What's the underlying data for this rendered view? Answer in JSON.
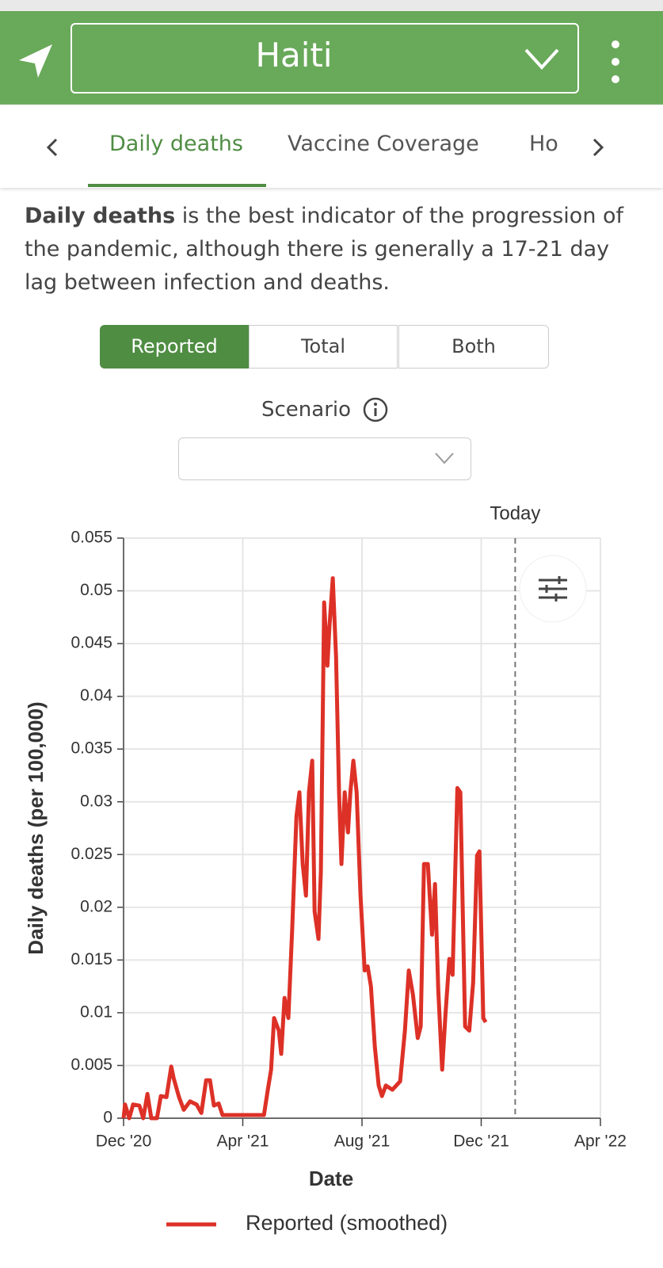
{
  "header": {
    "title": "Haiti"
  },
  "tabs": [
    "Daily deaths",
    "Vaccine Coverage",
    "Ho"
  ],
  "description": {
    "bold": "Daily deaths",
    "text": " is the best indicator of the progression of the pandemic, although there is generally a 17-21 day lag between infection and deaths."
  },
  "toggle": [
    "Reported",
    "Total",
    "Both"
  ],
  "scenario": {
    "label": "Scenario"
  },
  "chart_data": {
    "type": "line",
    "xlabel": "Date",
    "ylabel": "Daily deaths (per 100,000)",
    "x": [
      0,
      0.05,
      0.19,
      0.32,
      0.53,
      0.66,
      0.8,
      0.93,
      1.12,
      1.25,
      1.44,
      1.6,
      1.68,
      1.86,
      2.02,
      2.23,
      2.45,
      2.61,
      2.77,
      2.9,
      3.03,
      3.19,
      3.32,
      3.56,
      3.83,
      4.36,
      4.71,
      4.84,
      4.95,
      5.05,
      5.21,
      5.29,
      5.4,
      5.53,
      5.66,
      5.8,
      5.9,
      6.01,
      6.12,
      6.22,
      6.33,
      6.41,
      6.54,
      6.62,
      6.73,
      6.84,
      6.91,
      7.02,
      7.13,
      7.23,
      7.31,
      7.42,
      7.53,
      7.61,
      7.71,
      7.82,
      7.95,
      8.09,
      8.19,
      8.3,
      8.43,
      8.56,
      8.67,
      8.8,
      9.02,
      9.28,
      9.44,
      9.57,
      9.71,
      9.87,
      9.97,
      10.08,
      10.21,
      10.35,
      10.45,
      10.56,
      10.69,
      10.8,
      10.93,
      11.04,
      11.2,
      11.3,
      11.46,
      11.6,
      11.73,
      11.86,
      11.94,
      12.07,
      12.15
    ],
    "series": [
      {
        "name": "Reported (smoothed)",
        "color": "#dd3127",
        "values": [
          0,
          0.0013,
          0,
          0.0013,
          0.0012,
          0,
          0.0023,
          0,
          0,
          0.0021,
          0.002,
          0.0049,
          0.0038,
          0.002,
          0.0008,
          0.0016,
          0.0013,
          0.0005,
          0.0036,
          0.0036,
          0.0012,
          0.0014,
          0.0003,
          0.0003,
          0.0003,
          0.0003,
          0.0003,
          0.0027,
          0.0046,
          0.0095,
          0.0083,
          0.0061,
          0.0114,
          0.0095,
          0.0181,
          0.0286,
          0.0309,
          0.0241,
          0.0211,
          0.0309,
          0.0339,
          0.0196,
          0.017,
          0.0234,
          0.0489,
          0.0429,
          0.0467,
          0.0512,
          0.0437,
          0.0309,
          0.0241,
          0.0309,
          0.0271,
          0.0309,
          0.0339,
          0.0309,
          0.0211,
          0.014,
          0.0144,
          0.0125,
          0.0068,
          0.0031,
          0.0021,
          0.0031,
          0.0027,
          0.0035,
          0.0083,
          0.014,
          0.0117,
          0.0076,
          0.0087,
          0.0241,
          0.0241,
          0.0174,
          0.0222,
          0.0121,
          0.0046,
          0.0098,
          0.0151,
          0.0136,
          0.0313,
          0.0309,
          0.0087,
          0.0083,
          0.0129,
          0.0249,
          0.0253,
          0.0095,
          0.0091
        ]
      }
    ],
    "xlim": [
      0,
      16
    ],
    "xticks": [
      {
        "value": 0,
        "label": "Dec '20"
      },
      {
        "value": 4,
        "label": "Apr '21"
      },
      {
        "value": 8,
        "label": "Aug '21"
      },
      {
        "value": 12,
        "label": "Dec '21"
      },
      {
        "value": 16,
        "label": "Apr '22"
      }
    ],
    "ylim": [
      0,
      0.055
    ],
    "yticks": [
      0,
      0.005,
      0.01,
      0.015,
      0.02,
      0.025,
      0.03,
      0.035,
      0.04,
      0.045,
      0.05,
      0.055
    ],
    "grid": true,
    "today": {
      "label": "Today",
      "x": 13.14
    }
  }
}
